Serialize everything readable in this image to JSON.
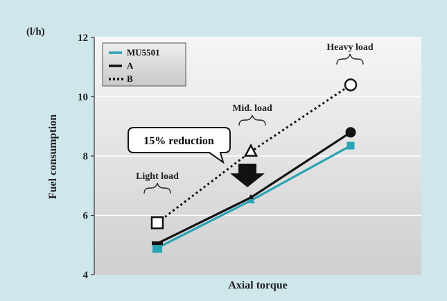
{
  "chart_data": {
    "type": "line",
    "unit_label": "(l/h)",
    "xlabel": "Axial torque",
    "ylabel": "Fuel consumption",
    "ylim": [
      4,
      12
    ],
    "yticks": [
      4,
      6,
      8,
      10,
      12
    ],
    "x": [
      1,
      2,
      3
    ],
    "series": [
      {
        "name": "MU5501",
        "values": [
          4.9,
          6.5,
          8.35
        ],
        "color": "#2aa3b3",
        "style": "solid",
        "marker": "square"
      },
      {
        "name": "A",
        "values": [
          5.05,
          6.6,
          8.8
        ],
        "color": "#111111",
        "style": "solid",
        "marker": "circle"
      },
      {
        "name": "B",
        "values": [
          5.75,
          8.15,
          10.4
        ],
        "color": "#111111",
        "style": "dotted",
        "marker": "open"
      }
    ],
    "annotations": [
      {
        "label": "Light load",
        "x": 1
      },
      {
        "label": "Mid. load",
        "x": 2
      },
      {
        "label": "Heavy load",
        "x": 3
      }
    ],
    "callout": "15% reduction",
    "grid": "horizontal",
    "legend_position": "top-left"
  }
}
